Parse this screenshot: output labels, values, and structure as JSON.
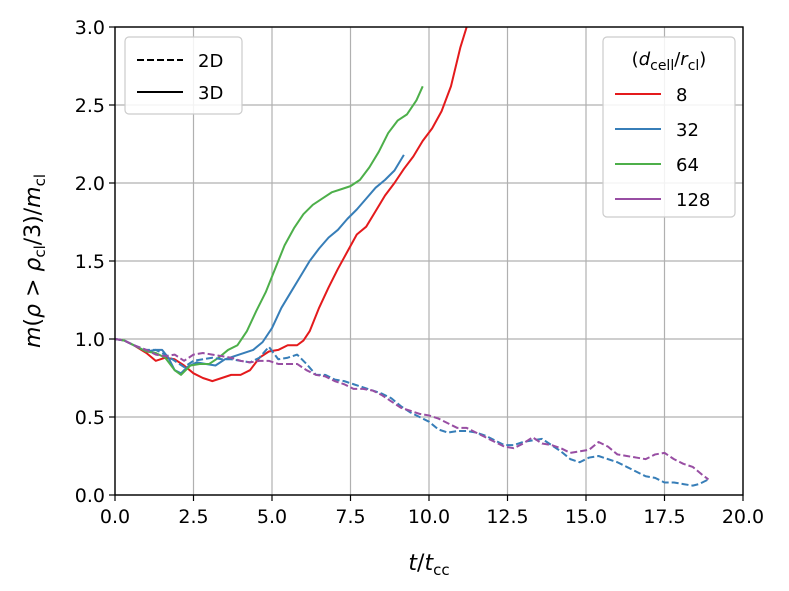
{
  "chart_data": {
    "type": "line",
    "xlabel": "t/t_cc",
    "ylabel": "m(ρ > ρ_cl/3)/m_cl",
    "xlim": [
      0.0,
      20.0
    ],
    "ylim": [
      0.0,
      3.0
    ],
    "x_ticks": [
      "0.0",
      "2.5",
      "5.0",
      "7.5",
      "10.0",
      "12.5",
      "15.0",
      "17.5",
      "20.0"
    ],
    "y_ticks": [
      "0.0",
      "0.5",
      "1.0",
      "1.5",
      "2.0",
      "2.5",
      "3.0"
    ],
    "grid": true,
    "style_legend": {
      "placement": "top-left",
      "entries": [
        {
          "label": "2D",
          "dash": "dashed"
        },
        {
          "label": "3D",
          "dash": "solid"
        }
      ]
    },
    "resolution_legend": {
      "placement": "top-right",
      "title": "(d_cell/r_cl)",
      "entries": [
        {
          "label": "8",
          "color": "#e41a1c"
        },
        {
          "label": "32",
          "color": "#377eb8"
        },
        {
          "label": "64",
          "color": "#4daf4a"
        },
        {
          "label": "128",
          "color": "#984ea3"
        }
      ]
    },
    "series": [
      {
        "name": "8",
        "dimension": "3D",
        "color": "#e41a1c",
        "dash": "solid",
        "points": [
          [
            0,
            1.0
          ],
          [
            0.3,
            0.99
          ],
          [
            0.6,
            0.96
          ],
          [
            1.0,
            0.91
          ],
          [
            1.3,
            0.86
          ],
          [
            1.6,
            0.88
          ],
          [
            1.9,
            0.87
          ],
          [
            2.2,
            0.83
          ],
          [
            2.5,
            0.78
          ],
          [
            2.8,
            0.75
          ],
          [
            3.1,
            0.73
          ],
          [
            3.4,
            0.75
          ],
          [
            3.7,
            0.77
          ],
          [
            4.0,
            0.77
          ],
          [
            4.3,
            0.8
          ],
          [
            4.6,
            0.88
          ],
          [
            4.9,
            0.92
          ],
          [
            5.2,
            0.93
          ],
          [
            5.5,
            0.96
          ],
          [
            5.8,
            0.96
          ],
          [
            6.0,
            0.99
          ],
          [
            6.2,
            1.05
          ],
          [
            6.5,
            1.2
          ],
          [
            6.8,
            1.33
          ],
          [
            7.1,
            1.45
          ],
          [
            7.4,
            1.56
          ],
          [
            7.7,
            1.67
          ],
          [
            8.0,
            1.72
          ],
          [
            8.3,
            1.82
          ],
          [
            8.6,
            1.92
          ],
          [
            8.9,
            2.0
          ],
          [
            9.2,
            2.09
          ],
          [
            9.5,
            2.17
          ],
          [
            9.8,
            2.27
          ],
          [
            10.1,
            2.35
          ],
          [
            10.4,
            2.46
          ],
          [
            10.7,
            2.62
          ],
          [
            11.0,
            2.87
          ],
          [
            11.2,
            3.0
          ]
        ]
      },
      {
        "name": "32",
        "dimension": "3D",
        "color": "#377eb8",
        "dash": "solid",
        "points": [
          [
            0,
            1.0
          ],
          [
            0.3,
            0.99
          ],
          [
            0.6,
            0.96
          ],
          [
            1.0,
            0.92
          ],
          [
            1.3,
            0.93
          ],
          [
            1.5,
            0.93
          ],
          [
            1.7,
            0.88
          ],
          [
            1.9,
            0.8
          ],
          [
            2.1,
            0.78
          ],
          [
            2.3,
            0.82
          ],
          [
            2.6,
            0.85
          ],
          [
            2.9,
            0.84
          ],
          [
            3.2,
            0.83
          ],
          [
            3.5,
            0.87
          ],
          [
            3.8,
            0.89
          ],
          [
            4.1,
            0.91
          ],
          [
            4.4,
            0.93
          ],
          [
            4.7,
            0.98
          ],
          [
            5.0,
            1.07
          ],
          [
            5.3,
            1.2
          ],
          [
            5.6,
            1.3
          ],
          [
            5.9,
            1.4
          ],
          [
            6.2,
            1.5
          ],
          [
            6.5,
            1.58
          ],
          [
            6.8,
            1.65
          ],
          [
            7.1,
            1.7
          ],
          [
            7.4,
            1.77
          ],
          [
            7.7,
            1.83
          ],
          [
            8.0,
            1.9
          ],
          [
            8.3,
            1.97
          ],
          [
            8.6,
            2.02
          ],
          [
            8.9,
            2.08
          ],
          [
            9.2,
            2.18
          ]
        ]
      },
      {
        "name": "64",
        "dimension": "3D",
        "color": "#4daf4a",
        "dash": "solid",
        "points": [
          [
            0,
            1.0
          ],
          [
            0.3,
            0.99
          ],
          [
            0.6,
            0.96
          ],
          [
            1.0,
            0.92
          ],
          [
            1.3,
            0.91
          ],
          [
            1.6,
            0.88
          ],
          [
            1.9,
            0.8
          ],
          [
            2.1,
            0.77
          ],
          [
            2.4,
            0.83
          ],
          [
            2.7,
            0.84
          ],
          [
            3.0,
            0.84
          ],
          [
            3.3,
            0.88
          ],
          [
            3.6,
            0.93
          ],
          [
            3.9,
            0.96
          ],
          [
            4.2,
            1.05
          ],
          [
            4.5,
            1.18
          ],
          [
            4.8,
            1.3
          ],
          [
            5.1,
            1.45
          ],
          [
            5.4,
            1.6
          ],
          [
            5.7,
            1.71
          ],
          [
            6.0,
            1.8
          ],
          [
            6.3,
            1.86
          ],
          [
            6.6,
            1.9
          ],
          [
            6.9,
            1.94
          ],
          [
            7.2,
            1.96
          ],
          [
            7.5,
            1.98
          ],
          [
            7.8,
            2.02
          ],
          [
            8.1,
            2.1
          ],
          [
            8.4,
            2.2
          ],
          [
            8.7,
            2.32
          ],
          [
            9.0,
            2.4
          ],
          [
            9.3,
            2.44
          ],
          [
            9.6,
            2.53
          ],
          [
            9.8,
            2.62
          ]
        ]
      },
      {
        "name": "32",
        "dimension": "2D",
        "color": "#377eb8",
        "dash": "dashed",
        "points": [
          [
            0,
            1.0
          ],
          [
            0.3,
            0.99
          ],
          [
            0.6,
            0.96
          ],
          [
            1.0,
            0.93
          ],
          [
            1.3,
            0.93
          ],
          [
            1.6,
            0.9
          ],
          [
            1.9,
            0.86
          ],
          [
            2.2,
            0.82
          ],
          [
            2.5,
            0.86
          ],
          [
            2.8,
            0.87
          ],
          [
            3.1,
            0.88
          ],
          [
            3.4,
            0.87
          ],
          [
            3.7,
            0.87
          ],
          [
            4.0,
            0.86
          ],
          [
            4.3,
            0.85
          ],
          [
            4.6,
            0.88
          ],
          [
            4.9,
            0.95
          ],
          [
            5.2,
            0.87
          ],
          [
            5.5,
            0.88
          ],
          [
            5.8,
            0.9
          ],
          [
            6.1,
            0.84
          ],
          [
            6.4,
            0.77
          ],
          [
            6.7,
            0.77
          ],
          [
            7.0,
            0.74
          ],
          [
            7.3,
            0.73
          ],
          [
            7.6,
            0.71
          ],
          [
            7.9,
            0.69
          ],
          [
            8.2,
            0.67
          ],
          [
            8.5,
            0.65
          ],
          [
            8.8,
            0.62
          ],
          [
            9.1,
            0.57
          ],
          [
            9.4,
            0.53
          ],
          [
            9.7,
            0.5
          ],
          [
            10.0,
            0.47
          ],
          [
            10.3,
            0.42
          ],
          [
            10.6,
            0.4
          ],
          [
            10.9,
            0.41
          ],
          [
            11.2,
            0.41
          ],
          [
            11.5,
            0.4
          ],
          [
            11.8,
            0.38
          ],
          [
            12.1,
            0.35
          ],
          [
            12.4,
            0.32
          ],
          [
            12.7,
            0.32
          ],
          [
            13.0,
            0.34
          ],
          [
            13.3,
            0.35
          ],
          [
            13.6,
            0.36
          ],
          [
            13.9,
            0.32
          ],
          [
            14.2,
            0.28
          ],
          [
            14.5,
            0.23
          ],
          [
            14.8,
            0.21
          ],
          [
            15.1,
            0.24
          ],
          [
            15.4,
            0.25
          ],
          [
            15.7,
            0.23
          ],
          [
            16.0,
            0.21
          ],
          [
            16.3,
            0.18
          ],
          [
            16.6,
            0.15
          ],
          [
            16.9,
            0.12
          ],
          [
            17.2,
            0.11
          ],
          [
            17.5,
            0.08
          ],
          [
            17.8,
            0.08
          ],
          [
            18.1,
            0.07
          ],
          [
            18.4,
            0.06
          ],
          [
            18.6,
            0.07
          ],
          [
            18.9,
            0.1
          ]
        ]
      },
      {
        "name": "128",
        "dimension": "2D",
        "color": "#984ea3",
        "dash": "dashed",
        "points": [
          [
            0,
            1.0
          ],
          [
            0.3,
            0.99
          ],
          [
            0.6,
            0.96
          ],
          [
            1.0,
            0.93
          ],
          [
            1.3,
            0.9
          ],
          [
            1.6,
            0.89
          ],
          [
            1.9,
            0.9
          ],
          [
            2.2,
            0.86
          ],
          [
            2.5,
            0.9
          ],
          [
            2.8,
            0.91
          ],
          [
            3.1,
            0.9
          ],
          [
            3.4,
            0.89
          ],
          [
            3.7,
            0.88
          ],
          [
            4.0,
            0.86
          ],
          [
            4.3,
            0.85
          ],
          [
            4.6,
            0.86
          ],
          [
            4.9,
            0.86
          ],
          [
            5.2,
            0.84
          ],
          [
            5.5,
            0.84
          ],
          [
            5.8,
            0.84
          ],
          [
            6.1,
            0.8
          ],
          [
            6.4,
            0.77
          ],
          [
            6.7,
            0.76
          ],
          [
            7.0,
            0.73
          ],
          [
            7.3,
            0.71
          ],
          [
            7.6,
            0.68
          ],
          [
            7.9,
            0.68
          ],
          [
            8.2,
            0.67
          ],
          [
            8.5,
            0.64
          ],
          [
            8.8,
            0.6
          ],
          [
            9.1,
            0.56
          ],
          [
            9.4,
            0.54
          ],
          [
            9.7,
            0.52
          ],
          [
            10.0,
            0.51
          ],
          [
            10.3,
            0.49
          ],
          [
            10.6,
            0.46
          ],
          [
            10.9,
            0.43
          ],
          [
            11.2,
            0.43
          ],
          [
            11.5,
            0.4
          ],
          [
            11.8,
            0.37
          ],
          [
            12.1,
            0.34
          ],
          [
            12.4,
            0.31
          ],
          [
            12.7,
            0.3
          ],
          [
            13.0,
            0.33
          ],
          [
            13.3,
            0.37
          ],
          [
            13.6,
            0.33
          ],
          [
            13.9,
            0.32
          ],
          [
            14.2,
            0.3
          ],
          [
            14.5,
            0.27
          ],
          [
            14.8,
            0.28
          ],
          [
            15.1,
            0.29
          ],
          [
            15.4,
            0.34
          ],
          [
            15.7,
            0.31
          ],
          [
            16.0,
            0.26
          ],
          [
            16.3,
            0.25
          ],
          [
            16.6,
            0.24
          ],
          [
            16.9,
            0.23
          ],
          [
            17.2,
            0.26
          ],
          [
            17.5,
            0.27
          ],
          [
            17.8,
            0.23
          ],
          [
            18.1,
            0.2
          ],
          [
            18.4,
            0.18
          ],
          [
            18.7,
            0.13
          ],
          [
            18.9,
            0.1
          ]
        ]
      }
    ]
  }
}
